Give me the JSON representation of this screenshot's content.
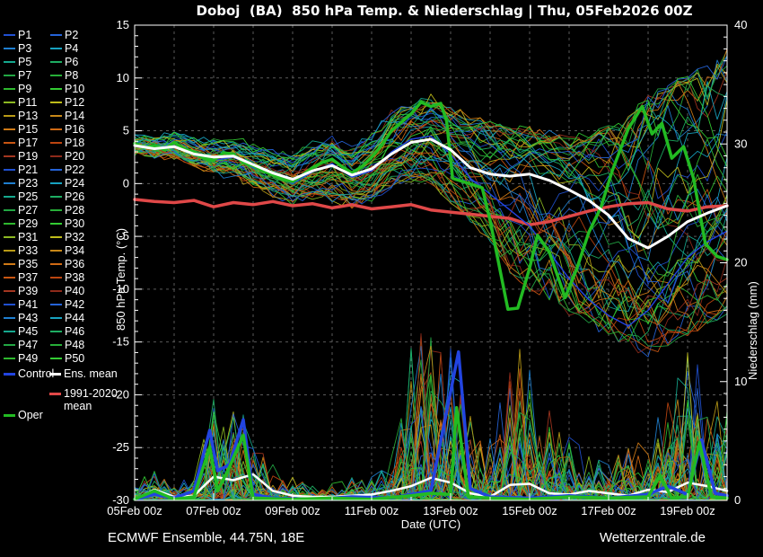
{
  "title": "Doboj  (BA)  850 hPa Temp. & Niederschlag | Thu, 05Feb2026 00Z",
  "footer": {
    "left": "ECMWF Ensemble, 44.75N, 18E",
    "right": "Wetterzentrale.de"
  },
  "axes": {
    "left_label": "850 hPa Temp. (°C)",
    "right_label": "Niederschlag (mm)",
    "x_label": "Date (UTC)",
    "temp_ticks": [
      15,
      10,
      5,
      0,
      -5,
      -10,
      -15,
      -20,
      -25,
      -30
    ],
    "precip_ticks": [
      40,
      30,
      20,
      10,
      0
    ],
    "x_tick_labels": [
      "05Feb 00z",
      "07Feb 00z",
      "09Feb 00z",
      "11Feb 00z",
      "13Feb 00z",
      "15Feb 00z",
      "17Feb 00z",
      "19Feb 00z"
    ]
  },
  "legend": {
    "members": [
      {
        "label": "P1",
        "color": "#2050d0"
      },
      {
        "label": "P2",
        "color": "#2563d8"
      },
      {
        "label": "P3",
        "color": "#1f7fd0"
      },
      {
        "label": "P4",
        "color": "#17a2c0"
      },
      {
        "label": "P5",
        "color": "#15a88e"
      },
      {
        "label": "P6",
        "color": "#1ead62"
      },
      {
        "label": "P7",
        "color": "#22a643"
      },
      {
        "label": "P8",
        "color": "#27ae38"
      },
      {
        "label": "P9",
        "color": "#2eb82e"
      },
      {
        "label": "P10",
        "color": "#33cc33"
      },
      {
        "label": "P11",
        "color": "#8cb822"
      },
      {
        "label": "P12",
        "color": "#bfbc1a"
      },
      {
        "label": "P13",
        "color": "#b89a16"
      },
      {
        "label": "P14",
        "color": "#c88818"
      },
      {
        "label": "P15",
        "color": "#cf7a16"
      },
      {
        "label": "P16",
        "color": "#d06a14"
      },
      {
        "label": "P17",
        "color": "#c85512"
      },
      {
        "label": "P18",
        "color": "#bc4510"
      },
      {
        "label": "P19",
        "color": "#a33620"
      },
      {
        "label": "P20",
        "color": "#8e2a1a"
      },
      {
        "label": "P21",
        "color": "#2050d0"
      },
      {
        "label": "P22",
        "color": "#2563d8"
      },
      {
        "label": "P23",
        "color": "#1f7fd0"
      },
      {
        "label": "P24",
        "color": "#17a2c0"
      },
      {
        "label": "P25",
        "color": "#15a88e"
      },
      {
        "label": "P26",
        "color": "#1ead62"
      },
      {
        "label": "P27",
        "color": "#22a643"
      },
      {
        "label": "P28",
        "color": "#27ae38"
      },
      {
        "label": "P29",
        "color": "#2eb82e"
      },
      {
        "label": "P30",
        "color": "#33cc33"
      },
      {
        "label": "P31",
        "color": "#8cb822"
      },
      {
        "label": "P32",
        "color": "#bfbc1a"
      },
      {
        "label": "P33",
        "color": "#b89a16"
      },
      {
        "label": "P34",
        "color": "#c88818"
      },
      {
        "label": "P35",
        "color": "#cf7a16"
      },
      {
        "label": "P36",
        "color": "#d06a14"
      },
      {
        "label": "P37",
        "color": "#c85512"
      },
      {
        "label": "P38",
        "color": "#bc4510"
      },
      {
        "label": "P39",
        "color": "#a33620"
      },
      {
        "label": "P40",
        "color": "#8e2a1a"
      },
      {
        "label": "P41",
        "color": "#2050d0"
      },
      {
        "label": "P42",
        "color": "#2563d8"
      },
      {
        "label": "P43",
        "color": "#1f7fd0"
      },
      {
        "label": "P44",
        "color": "#17a2c0"
      },
      {
        "label": "P45",
        "color": "#15a88e"
      },
      {
        "label": "P46",
        "color": "#1ead62"
      },
      {
        "label": "P47",
        "color": "#22a643"
      },
      {
        "label": "P48",
        "color": "#27ae38"
      },
      {
        "label": "P49",
        "color": "#2eb82e"
      },
      {
        "label": "P50",
        "color": "#33cc33"
      }
    ],
    "control": {
      "label": "Control",
      "color": "#2244e0"
    },
    "ens_mean": {
      "label": "Ens. mean",
      "color": "#ffffff"
    },
    "climate": {
      "label": "1991-2020 mean",
      "color": "#e04848"
    },
    "oper": {
      "label": "Oper",
      "color": "#22bb22"
    }
  },
  "chart_data": {
    "type": "line",
    "title": "Doboj (BA) 850 hPa Temp. & Niederschlag | Thu, 05Feb2026 00Z",
    "x_unit": "days since 05Feb2026 00Z",
    "x_range": [
      0,
      15
    ],
    "x_step": 0.5,
    "temp_axis": {
      "label": "850 hPa Temp. (°C)",
      "range": [
        -30,
        15
      ],
      "grid_every": 5
    },
    "precip_axis": {
      "label": "Niederschlag (mm)",
      "range": [
        0,
        40
      ]
    },
    "grid": {
      "x_every_days": 1
    },
    "series": {
      "ens_mean_temp": [
        3.6,
        3.3,
        3.5,
        2.8,
        2.5,
        2.6,
        1.8,
        1.0,
        0.4,
        1.2,
        1.7,
        0.8,
        1.4,
        2.8,
        3.9,
        4.2,
        3.2,
        1.5,
        0.9,
        0.7,
        0.9,
        0.3,
        -0.6,
        -1.6,
        -3.0,
        -5.2,
        -6.1,
        -5.0,
        -3.6,
        -2.8,
        -2.1
      ],
      "climate_mean_temp": [
        -1.5,
        -1.7,
        -1.8,
        -1.6,
        -2.2,
        -1.8,
        -2.0,
        -1.7,
        -2.1,
        -1.9,
        -2.3,
        -2.0,
        -2.4,
        -2.2,
        -2.0,
        -2.5,
        -2.7,
        -2.9,
        -3.1,
        -3.3,
        -3.9,
        -3.6,
        -3.1,
        -2.6,
        -2.2,
        -1.9,
        -1.8,
        -2.4,
        -2.6,
        -2.2,
        -2.1
      ],
      "control_temp": [
        3.7,
        3.4,
        3.6,
        2.9,
        2.2,
        2.5,
        1.5,
        0.8,
        0.0,
        1.1,
        1.9,
        0.6,
        1.2,
        3.0,
        4.2,
        4.5,
        2.8,
        0.5,
        -1.0,
        -2.5,
        -4.0,
        -6.5,
        -9.0,
        -11.0,
        -12.5,
        -13.5,
        -12.0,
        -9.5,
        -7.0,
        -5.5,
        -4.5
      ],
      "ens_mean_precip": [
        0.1,
        0.9,
        0.3,
        0.4,
        2.0,
        1.7,
        2.2,
        0.8,
        0.4,
        0.3,
        0.3,
        0.4,
        0.5,
        0.8,
        1.2,
        1.9,
        1.5,
        0.6,
        0.3,
        1.3,
        1.4,
        0.6,
        0.5,
        0.8,
        0.6,
        0.4,
        0.9,
        0.7,
        1.5,
        1.2,
        0.8
      ],
      "oper_temp": [
        [
          0,
          3.8
        ],
        [
          0.25,
          3.4
        ],
        [
          0.5,
          3.6
        ],
        [
          0.75,
          3.2
        ],
        [
          1,
          3.9
        ],
        [
          1.25,
          3.3
        ],
        [
          1.5,
          3.0
        ],
        [
          1.75,
          2.4
        ],
        [
          2,
          2.2
        ],
        [
          2.25,
          2.9
        ],
        [
          2.5,
          2.8
        ],
        [
          2.75,
          2.0
        ],
        [
          3,
          1.7
        ],
        [
          3.25,
          1.2
        ],
        [
          3.5,
          0.8
        ],
        [
          3.75,
          0.4
        ],
        [
          4,
          0.2
        ],
        [
          4.25,
          0.8
        ],
        [
          4.5,
          1.5
        ],
        [
          4.75,
          2.0
        ],
        [
          5,
          2.3
        ],
        [
          5.25,
          1.6
        ],
        [
          5.5,
          1.0
        ],
        [
          5.75,
          1.6
        ],
        [
          6,
          2.5
        ],
        [
          6.25,
          3.6
        ],
        [
          6.5,
          5.0
        ],
        [
          6.75,
          5.8
        ],
        [
          7,
          6.6
        ],
        [
          7.25,
          7.7
        ],
        [
          7.5,
          7.3
        ],
        [
          7.75,
          7.6
        ],
        [
          7.9,
          5.9
        ],
        [
          8.05,
          0.5
        ],
        [
          8.8,
          -0.4
        ],
        [
          9,
          -3.5
        ],
        [
          9.45,
          -11.9
        ],
        [
          9.7,
          -11.8
        ],
        [
          10,
          -8.0
        ],
        [
          10.2,
          -4.9
        ],
        [
          10.5,
          -6.5
        ],
        [
          10.9,
          -10.8
        ],
        [
          11.2,
          -8.0
        ],
        [
          11.5,
          -4.6
        ],
        [
          11.8,
          -2.3
        ],
        [
          12.1,
          1.3
        ],
        [
          12.5,
          5.2
        ],
        [
          12.85,
          7.3
        ],
        [
          13.1,
          4.7
        ],
        [
          13.35,
          5.7
        ],
        [
          13.6,
          2.4
        ],
        [
          13.9,
          3.5
        ],
        [
          14.15,
          0.5
        ],
        [
          14.45,
          -5.7
        ],
        [
          14.75,
          -6.9
        ],
        [
          15,
          -7.2
        ]
      ],
      "oper_precip": [
        [
          0,
          0.1
        ],
        [
          0.5,
          0.8
        ],
        [
          1,
          0.1
        ],
        [
          1.5,
          0.3
        ],
        [
          1.9,
          4.5
        ],
        [
          2.1,
          0.8
        ],
        [
          2.4,
          2.8
        ],
        [
          2.75,
          5.5
        ],
        [
          3,
          0.2
        ],
        [
          4,
          0.1
        ],
        [
          5,
          0.2
        ],
        [
          6,
          0.1
        ],
        [
          7,
          0.4
        ],
        [
          7.5,
          0.6
        ],
        [
          8,
          0.5
        ],
        [
          8.15,
          7.8
        ],
        [
          8.45,
          0.3
        ],
        [
          9,
          0.2
        ],
        [
          10,
          0.1
        ],
        [
          11,
          0.3
        ],
        [
          12,
          0.2
        ],
        [
          13,
          0.3
        ],
        [
          13.3,
          2.1
        ],
        [
          13.6,
          0.2
        ],
        [
          14,
          0.3
        ],
        [
          14.3,
          4.9
        ],
        [
          14.6,
          0.3
        ],
        [
          15,
          0.2
        ]
      ],
      "control_precip": [
        [
          0,
          0.1
        ],
        [
          0.5,
          0.5
        ],
        [
          1,
          0.2
        ],
        [
          1.5,
          0.8
        ],
        [
          1.9,
          5.9
        ],
        [
          2.1,
          2.5
        ],
        [
          2.4,
          3.0
        ],
        [
          2.75,
          6.8
        ],
        [
          3,
          0.5
        ],
        [
          3.5,
          0.2
        ],
        [
          4.5,
          0.1
        ],
        [
          5.5,
          0.3
        ],
        [
          6.5,
          0.2
        ],
        [
          7.5,
          0.8
        ],
        [
          8.2,
          12.5
        ],
        [
          8.5,
          1.0
        ],
        [
          9,
          0.3
        ],
        [
          10,
          0.2
        ],
        [
          11,
          0.4
        ],
        [
          12,
          0.2
        ],
        [
          13,
          0.5
        ],
        [
          13.5,
          1.2
        ],
        [
          14,
          0.5
        ],
        [
          14.35,
          5.1
        ],
        [
          14.7,
          0.6
        ],
        [
          15,
          0.4
        ]
      ]
    },
    "ensemble": {
      "count": 50,
      "seed": 11,
      "note": "50 perturbed members shown as thin spaghetti lines; values approximated by envelope",
      "temp_envelope_min": [
        3.0,
        2.8,
        2.5,
        2.0,
        1.2,
        0.8,
        0.0,
        -0.8,
        -1.5,
        -1.0,
        -1.2,
        -2.0,
        -1.5,
        0.0,
        0.5,
        0.0,
        -1.5,
        -3.5,
        -5.0,
        -8.0,
        -10.0,
        -11.0,
        -12.0,
        -13.0,
        -14.0,
        -15.0,
        -16.0,
        -15.0,
        -14.0,
        -13.0,
        -12.0
      ],
      "temp_envelope_max": [
        4.3,
        4.2,
        4.5,
        4.0,
        3.8,
        4.0,
        3.5,
        3.0,
        2.5,
        3.5,
        4.0,
        3.0,
        4.5,
        6.5,
        7.5,
        8.0,
        7.0,
        6.0,
        5.5,
        5.0,
        5.0,
        4.5,
        4.0,
        4.5,
        5.0,
        6.0,
        8.0,
        9.0,
        10.0,
        11.0,
        12.5
      ],
      "precip_max_amp": [
        1.5,
        2.5,
        1.5,
        3.0,
        9.0,
        8.0,
        9.5,
        3.5,
        2.0,
        1.5,
        1.5,
        2.0,
        2.5,
        4.0,
        13.0,
        16.0,
        14.0,
        8.0,
        6.0,
        12.0,
        13.5,
        8.0,
        6.0,
        4.0,
        3.5,
        4.5,
        6.0,
        9.0,
        13.0,
        10.0,
        12.0
      ]
    },
    "styles": {
      "mean_color": "#ffffff",
      "oper_color": "#22bb22",
      "control_color": "#2244e0",
      "climate_color": "#e04848",
      "grid_color": "#5a5a5a",
      "axis_color": "#ffffff"
    }
  }
}
